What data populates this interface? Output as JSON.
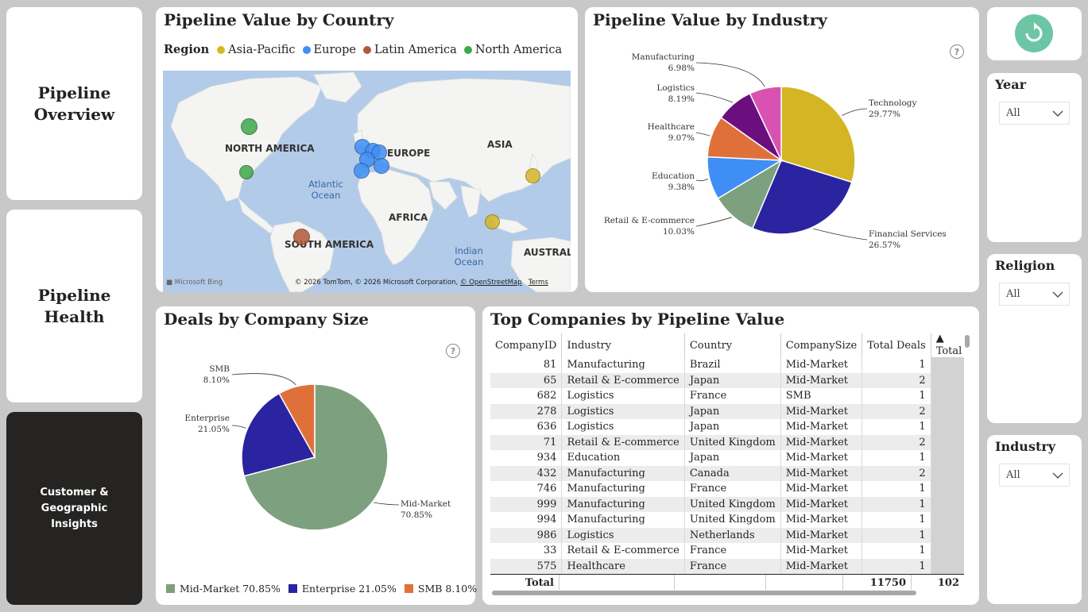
{
  "nav": {
    "items": [
      {
        "label_lines": [
          "Pipeline",
          "Overview"
        ],
        "active": false
      },
      {
        "label_lines": [
          "Pipeline Health"
        ],
        "active": false
      },
      {
        "label_lines": [
          "Customer & Geographic",
          "Insights"
        ],
        "active": true
      }
    ]
  },
  "map_card": {
    "title": "Pipeline Value by Country",
    "legend_title": "Region",
    "legend": [
      {
        "name": "Asia-Pacific",
        "color": "#d4b826"
      },
      {
        "name": "Europe",
        "color": "#3f8ef5"
      },
      {
        "name": "Latin America",
        "color": "#b3583b"
      },
      {
        "name": "North America",
        "color": "#3fa84a"
      }
    ],
    "labels": {
      "north_america": "NORTH AMERICA",
      "europe": "EUROPE",
      "asia": "ASIA",
      "africa": "AFRICA",
      "south_america": "SOUTH AMERICA",
      "australia": "AUSTRALI",
      "atlantic": "Atlantic Ocean",
      "indian": "Indian Ocean"
    },
    "footer": {
      "brand": "Microsoft Bing",
      "copyright": "© 2026 TomTom, © 2026 Microsoft Corporation,",
      "osm": "© OpenStreetMap",
      "terms": "Terms"
    }
  },
  "industry_card": {
    "title": "Pipeline Value by Industry",
    "chart_data": {
      "type": "pie",
      "title": "Pipeline Value by Industry",
      "slices": [
        {
          "label": "Technology",
          "pct": "29.77%",
          "value": 29.77,
          "color": "#d4b524"
        },
        {
          "label": "Financial Services",
          "pct": "26.57%",
          "value": 26.57,
          "color": "#2a24a0"
        },
        {
          "label": "Retail & E-commerce",
          "pct": "10.03%",
          "value": 10.03,
          "color": "#7da07e"
        },
        {
          "label": "Education",
          "pct": "9.38%",
          "value": 9.38,
          "color": "#3f8ef5"
        },
        {
          "label": "Healthcare",
          "pct": "9.07%",
          "value": 9.07,
          "color": "#e0703a"
        },
        {
          "label": "Logistics",
          "pct": "8.19%",
          "value": 8.19,
          "color": "#6b0f7f"
        },
        {
          "label": "Manufacturing",
          "pct": "6.98%",
          "value": 6.98,
          "color": "#d952b2"
        }
      ]
    }
  },
  "size_card": {
    "title": "Deals by Company Size",
    "chart_data": {
      "type": "pie",
      "title": "Deals by Company Size",
      "slices": [
        {
          "label": "Mid-Market",
          "pct": "70.85%",
          "value": 70.85,
          "color": "#7da07e"
        },
        {
          "label": "Enterprise",
          "pct": "21.05%",
          "value": 21.05,
          "color": "#2a24a0"
        },
        {
          "label": "SMB",
          "pct": "8.10%",
          "value": 8.1,
          "color": "#e0703a"
        }
      ]
    },
    "legend": [
      "Mid-Market 70.85%",
      "Enterprise 21.05%",
      "SMB 8.10%"
    ]
  },
  "table_card": {
    "title": "Top Companies by Pipeline Value",
    "columns": [
      "CompanyID",
      "Industry",
      "Country",
      "CompanySize",
      "Total Deals",
      "Total Pipel"
    ],
    "rows": [
      [
        "81",
        "Manufacturing",
        "Brazil",
        "Mid-Market",
        "1"
      ],
      [
        "65",
        "Retail & E-commerce",
        "Japan",
        "Mid-Market",
        "2"
      ],
      [
        "682",
        "Logistics",
        "France",
        "SMB",
        "1"
      ],
      [
        "278",
        "Logistics",
        "Japan",
        "Mid-Market",
        "2"
      ],
      [
        "636",
        "Logistics",
        "Japan",
        "Mid-Market",
        "1"
      ],
      [
        "71",
        "Retail & E-commerce",
        "United Kingdom",
        "Mid-Market",
        "2"
      ],
      [
        "934",
        "Education",
        "Japan",
        "Mid-Market",
        "1"
      ],
      [
        "432",
        "Manufacturing",
        "Canada",
        "Mid-Market",
        "2"
      ],
      [
        "746",
        "Manufacturing",
        "France",
        "Mid-Market",
        "1"
      ],
      [
        "999",
        "Manufacturing",
        "United Kingdom",
        "Mid-Market",
        "1"
      ],
      [
        "994",
        "Manufacturing",
        "United Kingdom",
        "Mid-Market",
        "1"
      ],
      [
        "986",
        "Logistics",
        "Netherlands",
        "Mid-Market",
        "1"
      ],
      [
        "33",
        "Retail & E-commerce",
        "France",
        "Mid-Market",
        "1"
      ],
      [
        "575",
        "Healthcare",
        "France",
        "Mid-Market",
        "1"
      ]
    ],
    "total_label": "Total",
    "total_deals": "11750",
    "total_pipeline": "102"
  },
  "slicers": [
    {
      "title": "Year",
      "value": "All"
    },
    {
      "title": "Religion",
      "value": "All"
    },
    {
      "title": "Industry",
      "value": "All"
    }
  ]
}
